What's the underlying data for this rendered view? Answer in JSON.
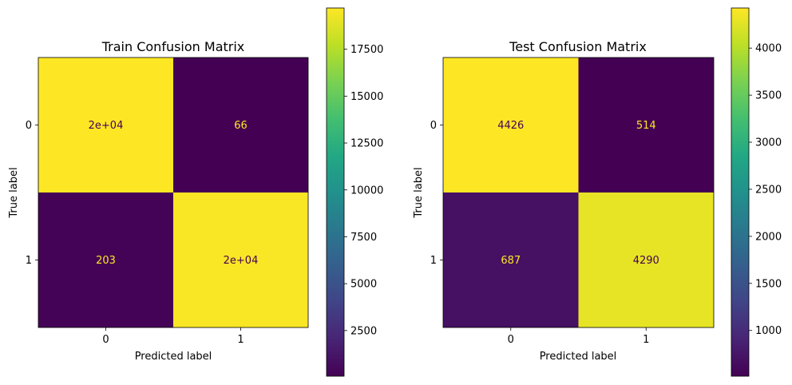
{
  "chart_data": [
    {
      "type": "heatmap",
      "title": "Train Confusion Matrix",
      "xlabel": "Predicted label",
      "ylabel": "True label",
      "x_tick_labels": [
        "0",
        "1"
      ],
      "y_tick_labels": [
        "0",
        "1"
      ],
      "values": [
        [
          19700,
          66
        ],
        [
          203,
          19563
        ]
      ],
      "cell_labels": [
        [
          "2e+04",
          "66"
        ],
        [
          "203",
          "2e+04"
        ]
      ],
      "colormap": "viridis",
      "colorbar": {
        "range": [
          66,
          19700
        ],
        "ticks": [
          2500,
          5000,
          7500,
          10000,
          12500,
          15000,
          17500
        ],
        "tick_labels": [
          "2500",
          "5000",
          "7500",
          "10000",
          "12500",
          "15000",
          "17500"
        ]
      }
    },
    {
      "type": "heatmap",
      "title": "Test Confusion Matrix",
      "xlabel": "Predicted label",
      "ylabel": "True label",
      "x_tick_labels": [
        "0",
        "1"
      ],
      "y_tick_labels": [
        "0",
        "1"
      ],
      "values": [
        [
          4426,
          514
        ],
        [
          687,
          4290
        ]
      ],
      "cell_labels": [
        [
          "4426",
          "514"
        ],
        [
          "687",
          "4290"
        ]
      ],
      "colormap": "viridis",
      "colorbar": {
        "range": [
          514,
          4426
        ],
        "ticks": [
          1000,
          1500,
          2000,
          2500,
          3000,
          3500,
          4000
        ],
        "tick_labels": [
          "1000",
          "1500",
          "2000",
          "2500",
          "3000",
          "3500",
          "4000"
        ]
      }
    }
  ],
  "colors": {
    "low_text": "#fde725",
    "high_text": "#440154"
  }
}
